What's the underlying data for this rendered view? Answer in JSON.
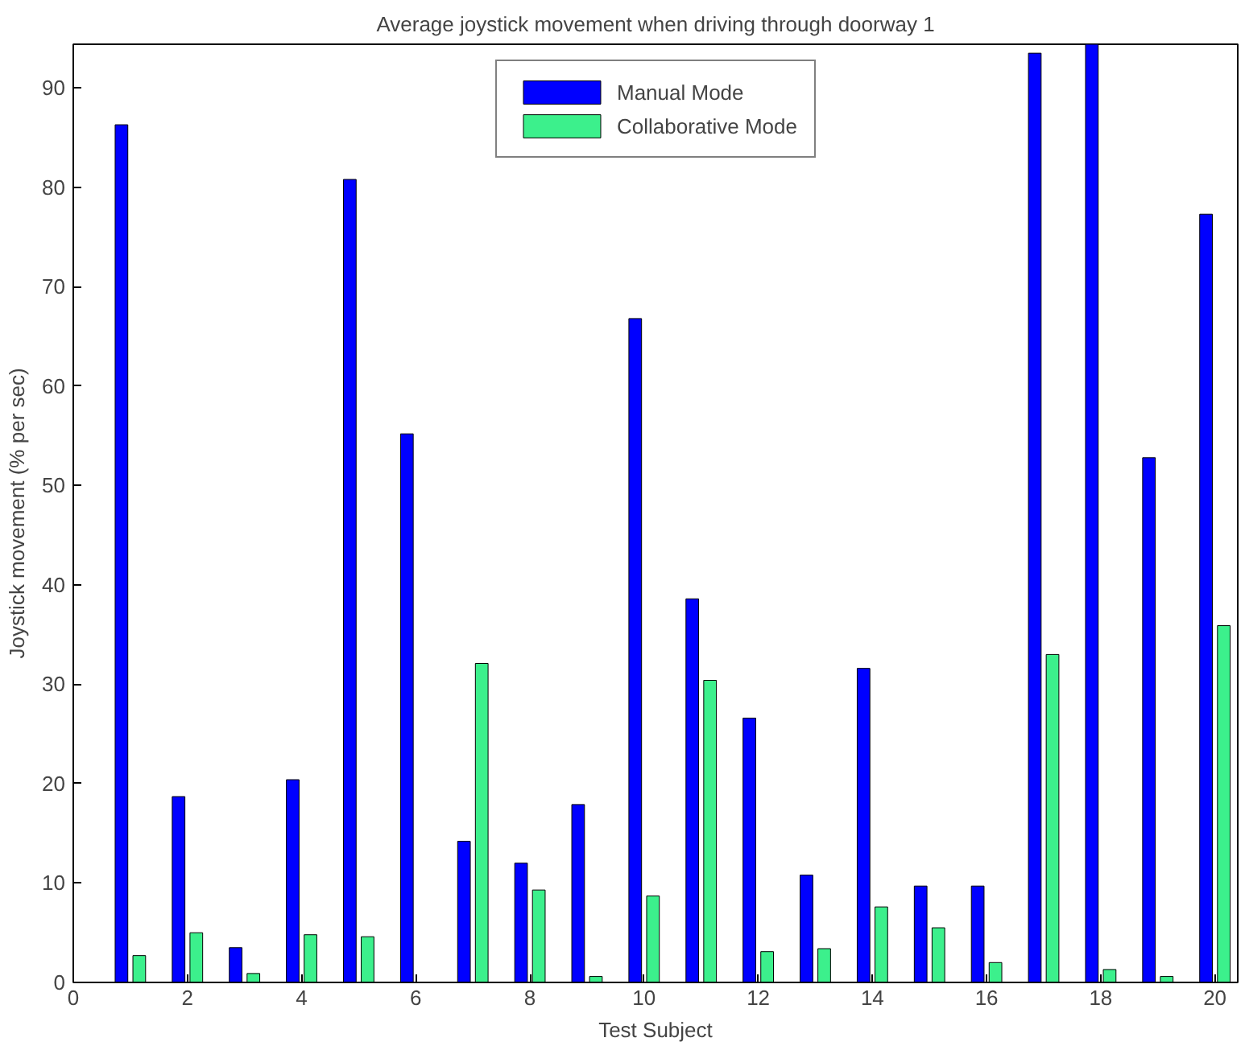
{
  "chart_data": {
    "type": "bar",
    "title": "Average joystick movement when driving through doorway 1",
    "xlabel": "Test Subject",
    "ylabel": "Joystick movement (% per sec)",
    "x": [
      1,
      2,
      3,
      4,
      5,
      6,
      7,
      8,
      9,
      10,
      11,
      12,
      13,
      14,
      15,
      16,
      17,
      18,
      19,
      20
    ],
    "series": [
      {
        "name": "Manual Mode",
        "color": "#0000ff",
        "values": [
          86.3,
          18.7,
          3.5,
          20.4,
          80.8,
          55.2,
          14.2,
          12.0,
          17.9,
          66.8,
          38.6,
          26.6,
          10.8,
          31.6,
          9.7,
          9.7,
          93.5,
          94.4,
          52.8,
          77.3
        ]
      },
      {
        "name": "Collaborative Mode",
        "color": "#3cf08c",
        "values": [
          2.7,
          5.0,
          0.9,
          4.8,
          4.6,
          null,
          32.1,
          9.3,
          0.6,
          8.7,
          30.4,
          3.1,
          3.4,
          7.6,
          5.5,
          2.0,
          33.0,
          1.3,
          0.6,
          35.9
        ]
      }
    ],
    "xlim": [
      0,
      20.4
    ],
    "ylim": [
      0,
      94.4
    ],
    "xticks": [
      0,
      2,
      4,
      6,
      8,
      10,
      12,
      14,
      16,
      18,
      20
    ],
    "yticks": [
      0,
      10,
      20,
      30,
      40,
      50,
      60,
      70,
      80,
      90
    ],
    "grid": false,
    "legend": "top"
  }
}
